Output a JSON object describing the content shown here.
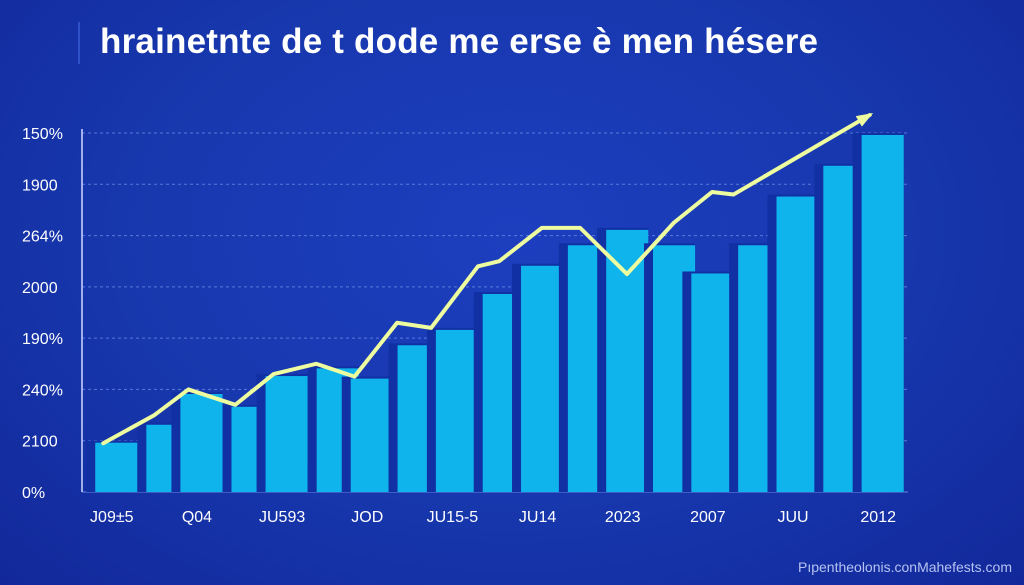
{
  "title": "hrainetnte de t dode me erse è men hésere",
  "watermark": "Pıpentheolonis.conMahefests.com",
  "colors": {
    "background": "#1737ad",
    "bar": "#0fb4ec",
    "bar_edge": "#1130a4",
    "line": "#eefca0",
    "grid": "#6f8fe6"
  },
  "chart_data": {
    "type": "bar",
    "title": "hrainetnte de t dode me erse è men hésere",
    "xlabel": "",
    "ylabel": "",
    "y_tick_labels": [
      "0%",
      "2100",
      "240%",
      "190%",
      "2000",
      "264%",
      "1900",
      "150%"
    ],
    "x_tick_labels": [
      "J09±5",
      "Q04",
      "JU593",
      "JOD",
      "JU15-5",
      "JU14",
      "2023",
      "2007",
      "JUU",
      "2012"
    ],
    "ylim": [
      0,
      7
    ],
    "grid": true,
    "bars": [
      {
        "x": 0.0,
        "value": 1.0
      },
      {
        "x": 0.6,
        "value": 1.35
      },
      {
        "x": 1.0,
        "value": 1.95
      },
      {
        "x": 1.6,
        "value": 1.7
      },
      {
        "x": 2.0,
        "value": 2.3
      },
      {
        "x": 2.6,
        "value": 2.45
      },
      {
        "x": 3.0,
        "value": 2.25
      },
      {
        "x": 3.55,
        "value": 2.9
      },
      {
        "x": 4.0,
        "value": 3.2
      },
      {
        "x": 4.55,
        "value": 3.9
      },
      {
        "x": 5.0,
        "value": 4.45
      },
      {
        "x": 5.55,
        "value": 4.85
      },
      {
        "x": 6.0,
        "value": 5.15
      },
      {
        "x": 6.55,
        "value": 4.85
      },
      {
        "x": 7.0,
        "value": 4.3
      },
      {
        "x": 7.55,
        "value": 4.85
      },
      {
        "x": 8.0,
        "value": 5.8
      },
      {
        "x": 8.55,
        "value": 6.4
      },
      {
        "x": 9.0,
        "value": 7.0
      }
    ],
    "trend_line": [
      {
        "x": -0.1,
        "value": 0.95
      },
      {
        "x": 0.5,
        "value": 1.5
      },
      {
        "x": 0.9,
        "value": 2.0
      },
      {
        "x": 1.45,
        "value": 1.7
      },
      {
        "x": 1.9,
        "value": 2.3
      },
      {
        "x": 2.4,
        "value": 2.5
      },
      {
        "x": 2.85,
        "value": 2.25
      },
      {
        "x": 3.35,
        "value": 3.3
      },
      {
        "x": 3.75,
        "value": 3.2
      },
      {
        "x": 4.3,
        "value": 4.4
      },
      {
        "x": 4.55,
        "value": 4.5
      },
      {
        "x": 5.05,
        "value": 5.15
      },
      {
        "x": 5.5,
        "value": 5.15
      },
      {
        "x": 6.05,
        "value": 4.25
      },
      {
        "x": 6.6,
        "value": 5.25
      },
      {
        "x": 7.05,
        "value": 5.85
      },
      {
        "x": 7.3,
        "value": 5.8
      },
      {
        "x": 8.9,
        "value": 7.35
      }
    ]
  }
}
